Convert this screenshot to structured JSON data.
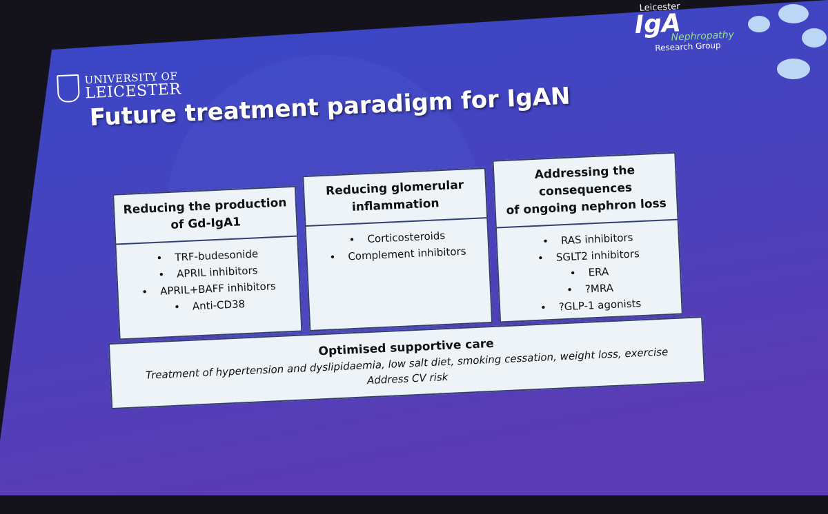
{
  "logos": {
    "university": [
      "UNIVERSITY OF",
      "LEICESTER"
    ],
    "group": {
      "top": "Leicester",
      "main": "IgA",
      "sub": "Nephropathy",
      "bottom": "Research Group"
    }
  },
  "title": "Future treatment paradigm for IgAN",
  "columns": [
    {
      "heading": [
        "Reducing the production",
        "of Gd-IgA1"
      ],
      "items": [
        "TRF-budesonide",
        "APRIL inhibitors",
        "APRIL+BAFF inhibitors",
        "Anti-CD38"
      ]
    },
    {
      "heading": [
        "Reducing glomerular",
        "inflammation"
      ],
      "items": [
        "Corticosteroids",
        "Complement inhibitors"
      ]
    },
    {
      "heading": [
        "Addressing the consequences",
        "of ongoing nephron loss"
      ],
      "items": [
        "RAS inhibitors",
        "SGLT2 inhibitors",
        "ERA",
        "?MRA",
        "?GLP-1 agonists"
      ]
    }
  ],
  "supportive_care": {
    "heading": "Optimised supportive care",
    "line": "Treatment of hypertension and dyslipidaemia, low salt diet, smoking cessation, weight loss, exercise",
    "note": "Address CV risk"
  }
}
